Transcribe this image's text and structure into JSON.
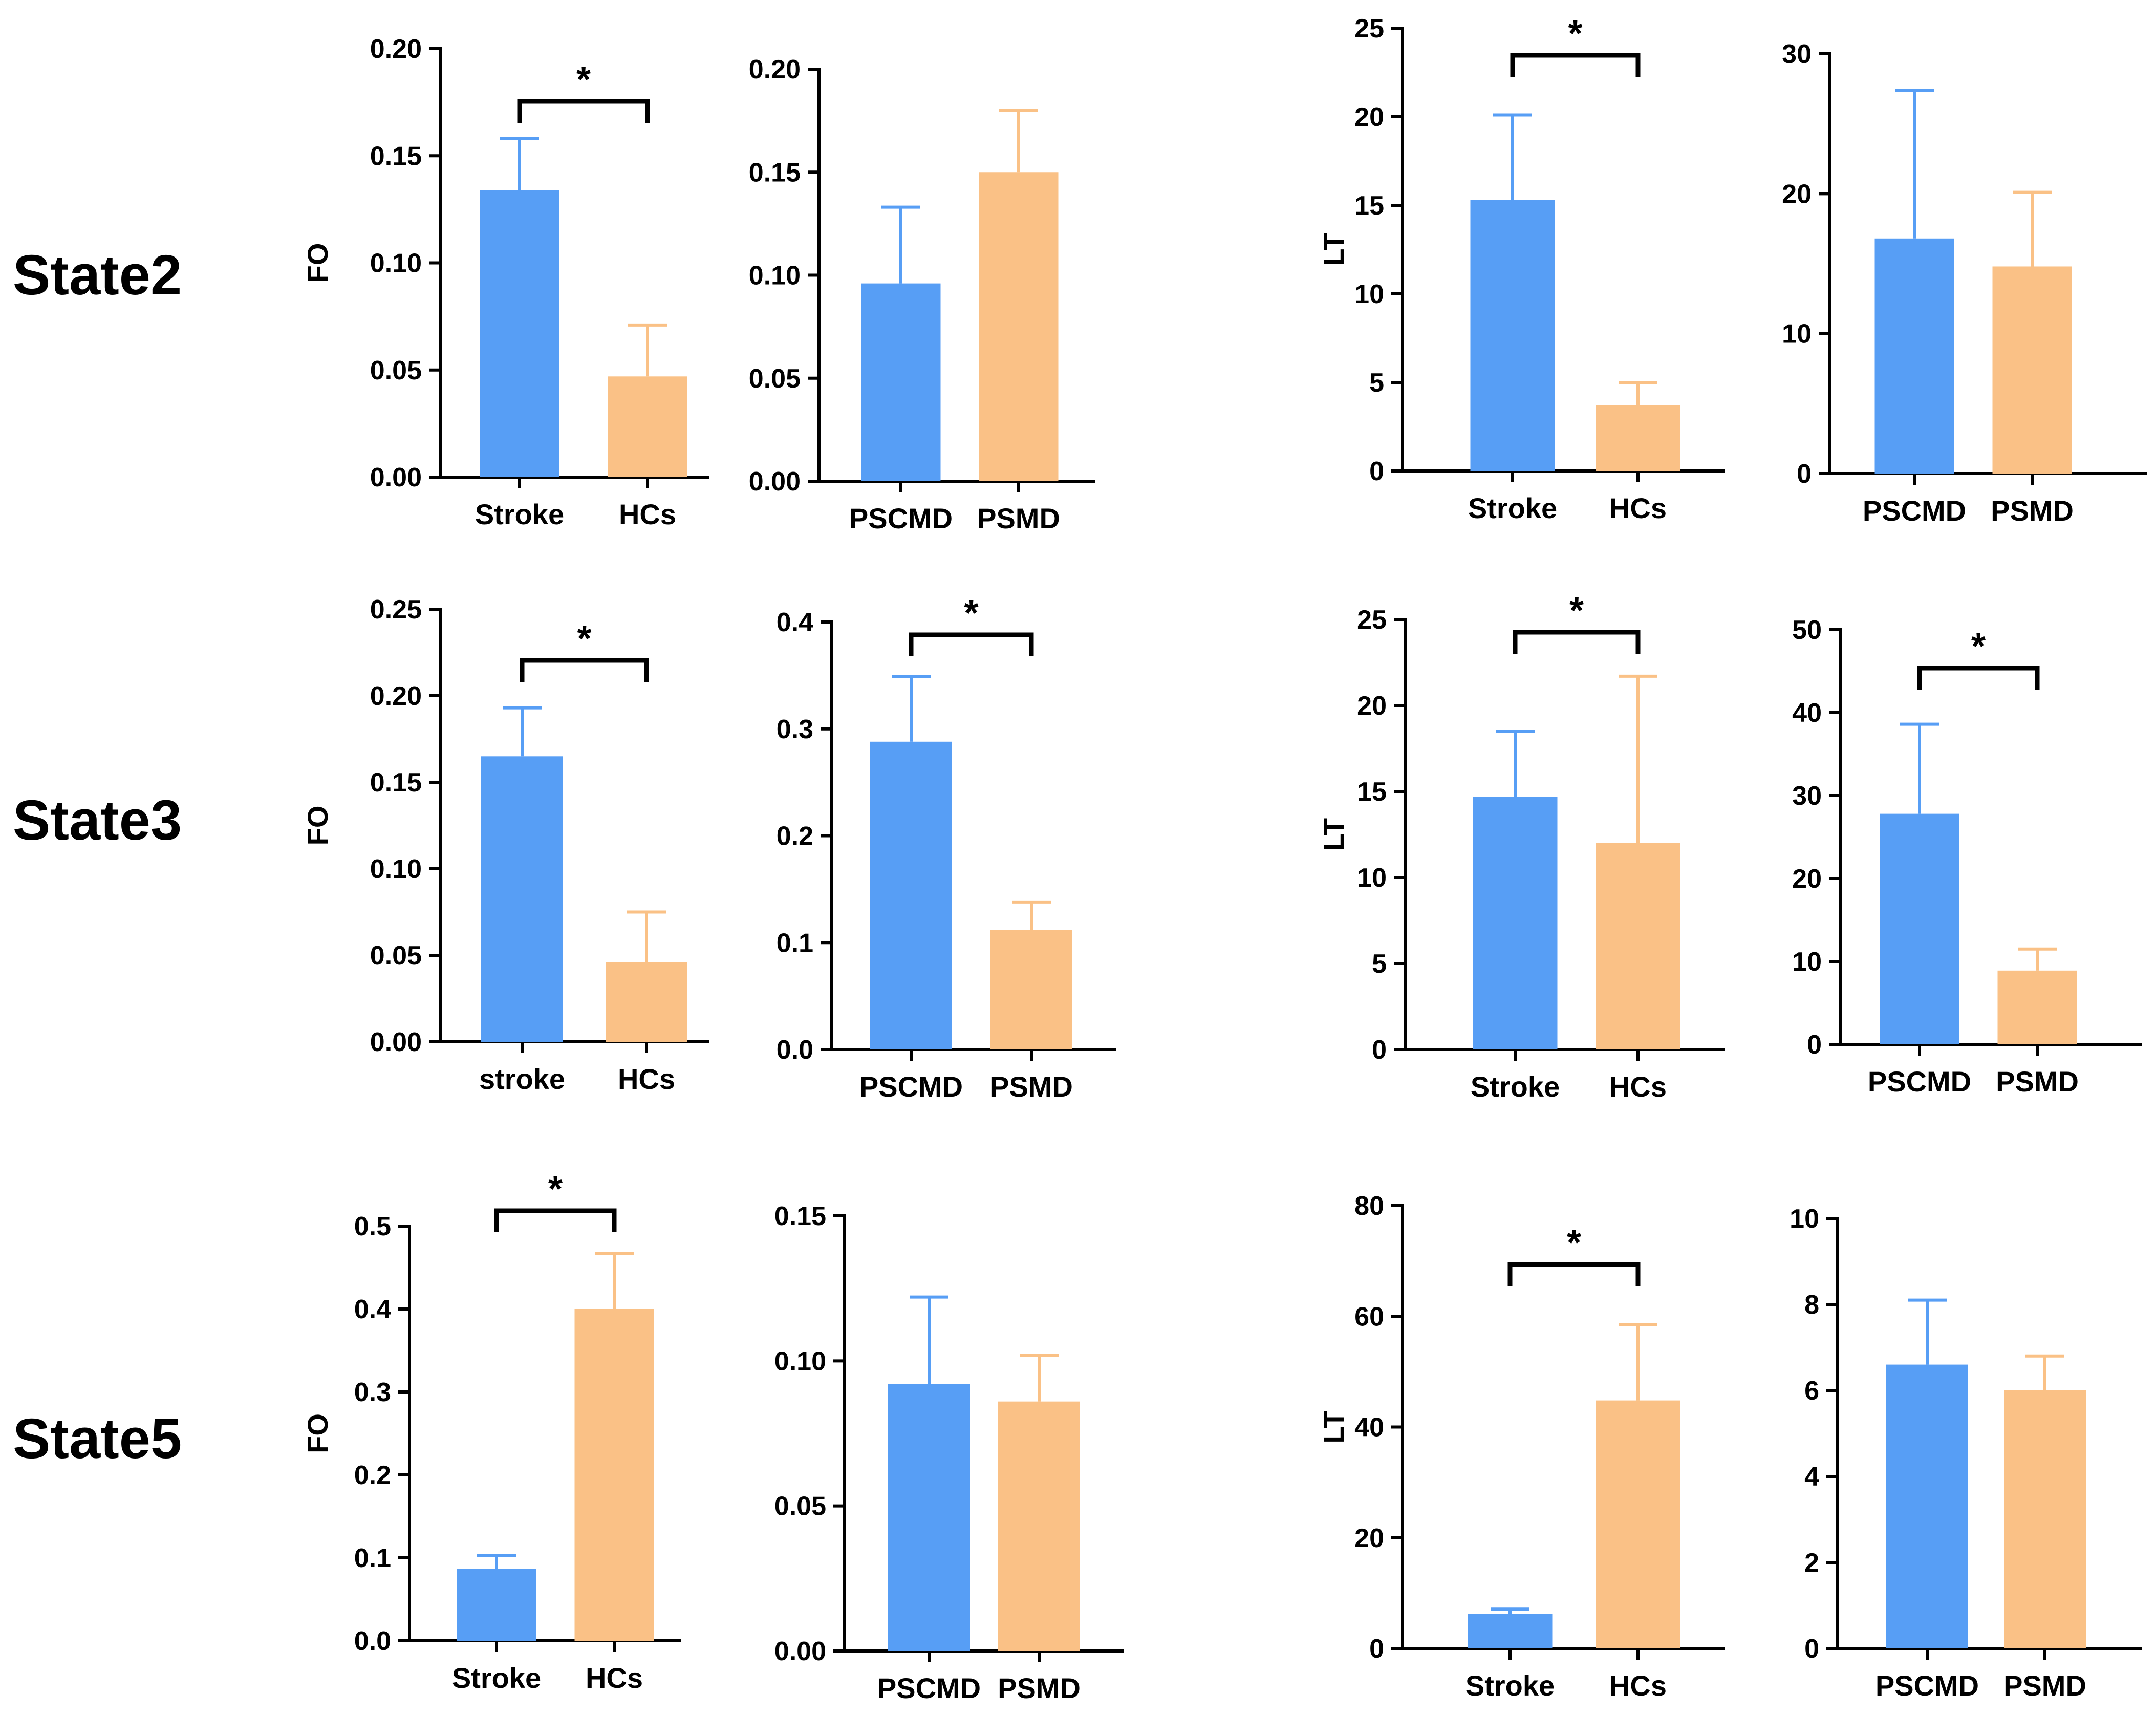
{
  "figure": {
    "row_labels": [
      "State2",
      "State3",
      "State5"
    ]
  },
  "colors": {
    "group1": "#579ef5",
    "group2": "#fac186"
  },
  "chart_data": [
    {
      "id": "s2-fo-groups",
      "type": "bar",
      "ylabel": "FO",
      "categories": [
        "Stroke",
        "HCs"
      ],
      "values": [
        0.134,
        0.047
      ],
      "errors": [
        0.024,
        0.024
      ],
      "ylim": [
        0,
        0.2
      ],
      "yticks": [
        "0.00",
        "0.05",
        "0.10",
        "0.15",
        "0.20"
      ],
      "significance": {
        "label": "*"
      }
    },
    {
      "id": "s2-fo-subgroups",
      "type": "bar",
      "ylabel": "",
      "categories": [
        "PSCMD",
        "PSMD"
      ],
      "values": [
        0.096,
        0.15
      ],
      "errors": [
        0.037,
        0.03
      ],
      "ylim": [
        0,
        0.2
      ],
      "yticks": [
        "0.00",
        "0.05",
        "0.10",
        "0.15",
        "0.20"
      ],
      "significance": null
    },
    {
      "id": "s2-lt-groups",
      "type": "bar",
      "ylabel": "LT",
      "categories": [
        "Stroke",
        "HCs"
      ],
      "values": [
        15.3,
        3.7
      ],
      "errors": [
        4.8,
        1.3
      ],
      "ylim": [
        0,
        25
      ],
      "yticks": [
        "0",
        "5",
        "10",
        "15",
        "20",
        "25"
      ],
      "significance": {
        "label": "*"
      }
    },
    {
      "id": "s2-lt-subgroups",
      "type": "bar",
      "ylabel": "",
      "categories": [
        "PSCMD",
        "PSMD"
      ],
      "values": [
        16.8,
        14.8
      ],
      "errors": [
        10.6,
        5.3
      ],
      "ylim": [
        0,
        30
      ],
      "yticks": [
        "0",
        "10",
        "20",
        "30"
      ],
      "significance": null
    },
    {
      "id": "s3-fo-groups",
      "type": "bar",
      "ylabel": "FO",
      "categories": [
        "stroke",
        "HCs"
      ],
      "values": [
        0.165,
        0.046
      ],
      "errors": [
        0.028,
        0.029
      ],
      "ylim": [
        0,
        0.25
      ],
      "yticks": [
        "0.00",
        "0.05",
        "0.10",
        "0.15",
        "0.20",
        "0.25"
      ],
      "significance": {
        "label": "*"
      }
    },
    {
      "id": "s3-fo-subgroups",
      "type": "bar",
      "ylabel": "",
      "categories": [
        "PSCMD",
        "PSMD"
      ],
      "values": [
        0.288,
        0.112
      ],
      "errors": [
        0.061,
        0.026
      ],
      "ylim": [
        0,
        0.4
      ],
      "yticks": [
        "0.0",
        "0.1",
        "0.2",
        "0.3",
        "0.4"
      ],
      "significance": {
        "label": "*"
      }
    },
    {
      "id": "s3-lt-groups",
      "type": "bar",
      "ylabel": "LT",
      "categories": [
        "Stroke",
        "HCs"
      ],
      "values": [
        14.7,
        12.0
      ],
      "errors": [
        3.8,
        9.7
      ],
      "ylim": [
        0,
        25
      ],
      "yticks": [
        "0",
        "5",
        "10",
        "15",
        "20",
        "25"
      ],
      "significance": {
        "label": "*"
      }
    },
    {
      "id": "s3-lt-subgroups",
      "type": "bar",
      "ylabel": "",
      "categories": [
        "PSCMD",
        "PSMD"
      ],
      "values": [
        27.8,
        8.9
      ],
      "errors": [
        10.8,
        2.6
      ],
      "ylim": [
        0,
        50
      ],
      "yticks": [
        "0",
        "10",
        "20",
        "30",
        "40",
        "50"
      ],
      "significance": {
        "label": "*"
      }
    },
    {
      "id": "s5-fo-groups",
      "type": "bar",
      "ylabel": "FO",
      "categories": [
        "Stroke",
        "HCs"
      ],
      "values": [
        0.087,
        0.4
      ],
      "errors": [
        0.016,
        0.067
      ],
      "ylim": [
        0,
        0.5
      ],
      "yticks": [
        "0.0",
        "0.1",
        "0.2",
        "0.3",
        "0.4",
        "0.5"
      ],
      "significance": {
        "label": "*"
      }
    },
    {
      "id": "s5-fo-subgroups",
      "type": "bar",
      "ylabel": "",
      "categories": [
        "PSCMD",
        "PSMD"
      ],
      "values": [
        0.092,
        0.086
      ],
      "errors": [
        0.03,
        0.016
      ],
      "ylim": [
        0,
        0.15
      ],
      "yticks": [
        "0.00",
        "0.05",
        "0.10",
        "0.15"
      ],
      "significance": null
    },
    {
      "id": "s5-lt-groups",
      "type": "bar",
      "ylabel": "LT",
      "categories": [
        "Stroke",
        "HCs"
      ],
      "values": [
        6.2,
        44.8
      ],
      "errors": [
        0.9,
        13.7
      ],
      "ylim": [
        0,
        80
      ],
      "yticks": [
        "0",
        "20",
        "40",
        "60",
        "80"
      ],
      "significance": {
        "label": "*"
      }
    },
    {
      "id": "s5-lt-subgroups",
      "type": "bar",
      "ylabel": "",
      "categories": [
        "PSCMD",
        "PSMD"
      ],
      "values": [
        6.6,
        6.0
      ],
      "errors": [
        1.5,
        0.8
      ],
      "ylim": [
        0,
        10
      ],
      "yticks": [
        "0",
        "2",
        "4",
        "6",
        "8",
        "10"
      ],
      "significance": null
    }
  ]
}
